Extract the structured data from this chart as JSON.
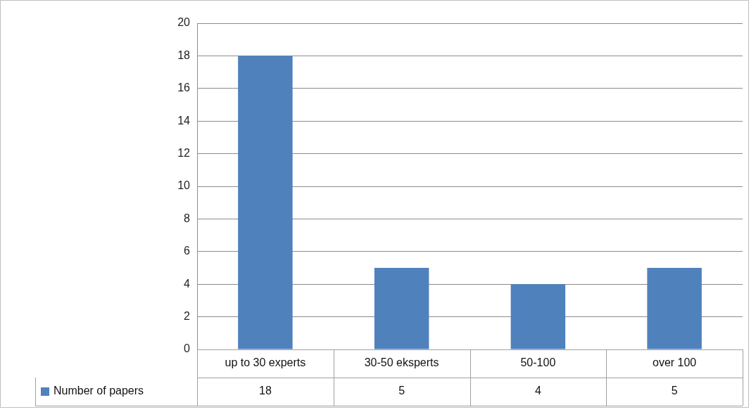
{
  "chart_data": {
    "type": "bar",
    "categories": [
      "up to 30 experts",
      "30-50 eksperts",
      "50-100",
      "over 100"
    ],
    "series": [
      {
        "name": "Number of papers",
        "color": "#4f81bd",
        "values": [
          18,
          5,
          4,
          5
        ]
      }
    ],
    "ylim": [
      0,
      20
    ],
    "yticks": [
      0,
      2,
      4,
      6,
      8,
      10,
      12,
      14,
      16,
      18,
      20
    ],
    "grid": "y",
    "legend": "bottom",
    "data_labels": true
  }
}
